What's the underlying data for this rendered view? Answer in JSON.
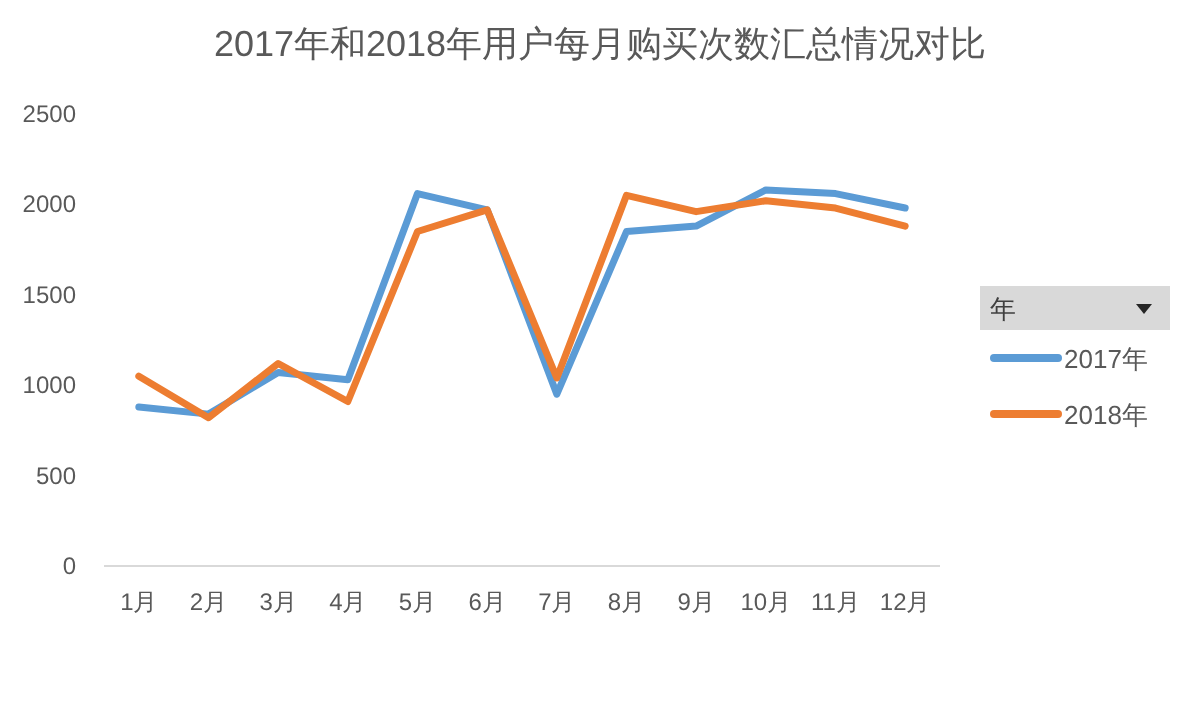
{
  "chart_data": {
    "type": "line",
    "title": "2017年和2018年用户每月购买次数汇总情况对比",
    "categories": [
      "1月",
      "2月",
      "3月",
      "4月",
      "5月",
      "6月",
      "7月",
      "8月",
      "9月",
      "10月",
      "11月",
      "12月"
    ],
    "series": [
      {
        "name": "2017年",
        "color": "#5b9bd5",
        "values": [
          880,
          840,
          1070,
          1030,
          2060,
          1970,
          950,
          1850,
          1880,
          2080,
          2060,
          1980
        ]
      },
      {
        "name": "2018年",
        "color": "#ed7d31",
        "values": [
          1050,
          820,
          1120,
          910,
          1850,
          1970,
          1040,
          2050,
          1960,
          2020,
          1980,
          1880
        ]
      }
    ],
    "ylim": [
      0,
      2500
    ],
    "yticks": [
      0,
      500,
      1000,
      1500,
      2000,
      2500
    ],
    "grid": false,
    "legend": "right",
    "legend_title": "年",
    "marker": "none",
    "line_style": "solid"
  }
}
